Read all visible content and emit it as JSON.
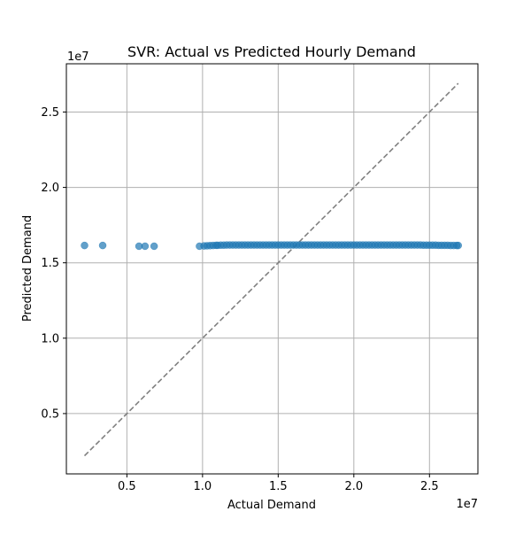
{
  "chart_data": {
    "type": "scatter",
    "title": "SVR: Actual vs Predicted Hourly Demand",
    "xlabel": "Actual Demand",
    "ylabel": "Predicted Demand",
    "x_offset_text": "1e7",
    "y_offset_text": "1e7",
    "xlim": [
      0.1,
      2.82
    ],
    "ylim": [
      0.1,
      2.82
    ],
    "x_ticks": [
      0.5,
      1.0,
      1.5,
      2.0,
      2.5
    ],
    "x_tick_labels": [
      "0.5",
      "1.0",
      "1.5",
      "2.0",
      "2.5"
    ],
    "y_ticks": [
      0.5,
      1.0,
      1.5,
      2.0,
      2.5
    ],
    "y_tick_labels": [
      "0.5",
      "1.0",
      "1.5",
      "2.0",
      "2.5"
    ],
    "grid": true,
    "point_color": "#1f77b4",
    "reference_line_color": "#808080",
    "reference_line": {
      "x": [
        0.22,
        2.69
      ],
      "y": [
        0.22,
        2.69
      ]
    },
    "points": {
      "x": [
        0.22,
        0.34,
        0.58,
        0.62,
        0.68,
        0.98,
        1.01,
        1.03,
        1.05,
        1.07,
        1.09,
        1.1,
        1.12,
        1.14,
        1.16,
        1.18,
        1.2,
        1.22,
        1.24,
        1.26,
        1.28,
        1.3,
        1.32,
        1.34,
        1.36,
        1.38,
        1.4,
        1.42,
        1.44,
        1.46,
        1.48,
        1.5,
        1.52,
        1.54,
        1.56,
        1.58,
        1.6,
        1.62,
        1.64,
        1.66,
        1.68,
        1.7,
        1.72,
        1.74,
        1.76,
        1.78,
        1.8,
        1.82,
        1.84,
        1.86,
        1.88,
        1.9,
        1.92,
        1.94,
        1.96,
        1.98,
        2.0,
        2.02,
        2.04,
        2.06,
        2.08,
        2.1,
        2.12,
        2.14,
        2.16,
        2.18,
        2.2,
        2.22,
        2.24,
        2.26,
        2.28,
        2.3,
        2.32,
        2.34,
        2.36,
        2.38,
        2.4,
        2.42,
        2.44,
        2.46,
        2.48,
        2.5,
        2.52,
        2.54,
        2.56,
        2.58,
        2.6,
        2.62,
        2.64,
        2.66,
        2.68,
        2.69
      ],
      "y": [
        1.615,
        1.615,
        1.61,
        1.61,
        1.61,
        1.61,
        1.612,
        1.613,
        1.614,
        1.615,
        1.616,
        1.616,
        1.617,
        1.617,
        1.618,
        1.618,
        1.618,
        1.618,
        1.618,
        1.618,
        1.618,
        1.618,
        1.618,
        1.618,
        1.618,
        1.618,
        1.618,
        1.618,
        1.618,
        1.618,
        1.618,
        1.618,
        1.618,
        1.618,
        1.618,
        1.618,
        1.618,
        1.618,
        1.618,
        1.618,
        1.618,
        1.618,
        1.618,
        1.618,
        1.618,
        1.618,
        1.618,
        1.618,
        1.618,
        1.618,
        1.618,
        1.618,
        1.618,
        1.618,
        1.618,
        1.618,
        1.618,
        1.618,
        1.618,
        1.618,
        1.618,
        1.618,
        1.618,
        1.618,
        1.618,
        1.618,
        1.618,
        1.618,
        1.618,
        1.618,
        1.618,
        1.618,
        1.618,
        1.618,
        1.618,
        1.618,
        1.618,
        1.618,
        1.618,
        1.617,
        1.617,
        1.617,
        1.617,
        1.617,
        1.616,
        1.616,
        1.616,
        1.616,
        1.615,
        1.615,
        1.615,
        1.615
      ]
    }
  }
}
